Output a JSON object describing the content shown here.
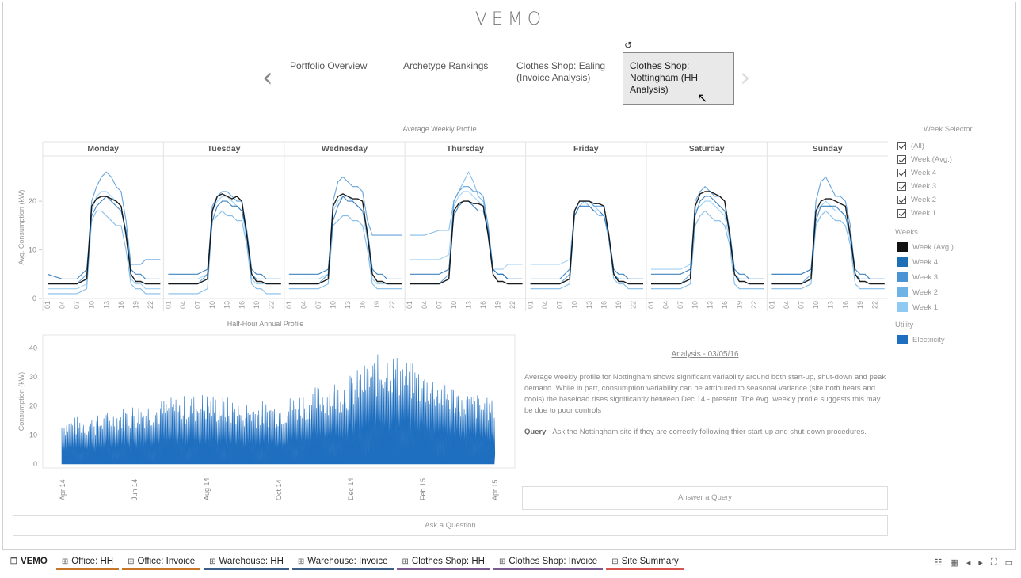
{
  "app": {
    "title": "VEMO"
  },
  "nav": {
    "buttons": [
      {
        "label": "Portfolio Overview"
      },
      {
        "label": "Archetype Rankings"
      },
      {
        "label": "Clothes Shop: Ealing (Invoice Analysis)"
      },
      {
        "label": "Clothes Shop: Nottingham (HH Analysis)"
      }
    ]
  },
  "weekly": {
    "title": "Average Weekly Profile",
    "ylabel": "Avg. Consumption (kW)",
    "days": [
      "Monday",
      "Tuesday",
      "Wednesday",
      "Thursday",
      "Friday",
      "Saturday",
      "Sunday"
    ]
  },
  "annual": {
    "title": "Half-Hour Annual Profile",
    "ylabel": "Consumption (kW)"
  },
  "legend": {
    "week_selector_title": "Week Selector",
    "week_selector": [
      "(All)",
      "Week (Avg.)",
      "Week 4",
      "Week 3",
      "Week 2",
      "Week 1"
    ],
    "weeks_title": "Weeks",
    "weeks": [
      {
        "label": "Week (Avg.)",
        "color": "#111111"
      },
      {
        "label": "Week 4",
        "color": "#1f6fb5"
      },
      {
        "label": "Week 3",
        "color": "#4a93d4"
      },
      {
        "label": "Week 2",
        "color": "#6fb2e6"
      },
      {
        "label": "Week 1",
        "color": "#8fcaf2"
      }
    ],
    "utility_title": "Utility",
    "utility": [
      {
        "label": "Electricity",
        "color": "#1f6fc0"
      }
    ]
  },
  "analysis": {
    "title": "Analysis - 03/05/16",
    "body": "Average weekly profile for Nottingham shows significant variability around both start-up, shut-down and peak demand. While in part, consumption variability can be attributed to seasonal variance (site both heats and cools) the baseload rises significantly between Dec 14 - present. The Avg. weekly profile suggests this may be due to poor controls",
    "query_label": "Query",
    "query_text": " - Ask the Nottingham site if they are correctly following thier start-up and shut-down procedures."
  },
  "buttons": {
    "answer_query": "Answer a Query",
    "ask_question": "Ask a Question"
  },
  "tabs": [
    {
      "label": "VEMO",
      "kind": "vemo"
    },
    {
      "label": "Office: HH",
      "kind": "office"
    },
    {
      "label": "Office: Invoice",
      "kind": "office"
    },
    {
      "label": "Warehouse: HH",
      "kind": "warehouse"
    },
    {
      "label": "Warehouse: Invoice",
      "kind": "warehouse"
    },
    {
      "label": "Clothes Shop: HH",
      "kind": "clothes"
    },
    {
      "label": "Clothes Shop: Invoice",
      "kind": "clothes"
    },
    {
      "label": "Site Summary",
      "kind": "summary"
    }
  ],
  "chart_data": [
    {
      "type": "line",
      "title": "Average Weekly Profile",
      "ylabel": "Avg. Consumption (kW)",
      "facets": [
        "Monday",
        "Tuesday",
        "Wednesday",
        "Thursday",
        "Friday",
        "Saturday",
        "Sunday"
      ],
      "x_ticks": [
        "01",
        "04",
        "07",
        "10",
        "13",
        "16",
        "19",
        "22"
      ],
      "x": [
        0,
        3,
        6,
        8,
        9,
        10,
        11,
        12,
        13,
        14,
        15,
        16,
        17,
        18,
        19,
        20,
        21,
        23
      ],
      "y_ticks": [
        0,
        10,
        20
      ],
      "ylim": [
        0,
        28
      ],
      "series": [
        {
          "name": "Week (Avg.)",
          "color": "#111111",
          "values": [
            [
              3,
              3,
              3,
              4,
              19,
              20.5,
              21,
              21,
              20.5,
              20,
              19,
              13,
              5,
              3.5,
              3.5,
              3,
              3,
              3
            ],
            [
              3,
              3,
              3,
              4,
              18,
              21,
              21.5,
              21,
              20.5,
              21,
              20,
              13,
              5,
              3.5,
              3.5,
              3,
              3,
              3
            ],
            [
              3,
              3,
              3,
              4,
              19,
              21,
              21.5,
              21,
              20.5,
              20.5,
              20,
              13,
              5,
              3.5,
              3.5,
              3,
              3,
              3
            ],
            [
              3,
              3,
              3,
              4,
              18,
              19.5,
              20,
              20,
              19.5,
              19.5,
              19,
              13,
              5,
              3.5,
              3.5,
              3,
              3,
              3
            ],
            [
              3,
              3,
              3,
              4,
              18,
              20,
              20,
              20,
              19.5,
              19.5,
              19,
              13,
              5,
              3.5,
              3.5,
              3,
              3,
              3
            ],
            [
              3,
              3,
              3,
              4,
              19,
              21.5,
              22,
              22,
              21.5,
              21,
              20,
              13,
              5,
              3.5,
              3.5,
              3,
              3,
              3
            ],
            [
              3,
              3,
              3,
              4,
              18,
              20,
              20.5,
              20.5,
              20,
              19.5,
              19,
              13,
              5,
              3.5,
              3.5,
              3,
              3,
              3
            ]
          ]
        },
        {
          "name": "Week 4",
          "color": "#1f6fb5",
          "values": [
            [
              5,
              4,
              4,
              6,
              17,
              19,
              20,
              21,
              20,
              19,
              18,
              14,
              6,
              5,
              5,
              4,
              4,
              4
            ],
            [
              5,
              5,
              5,
              6,
              16,
              19,
              20,
              20,
              19,
              19,
              18,
              14,
              6,
              5,
              5,
              4,
              4,
              4
            ],
            [
              5,
              5,
              5,
              6,
              16,
              19,
              21,
              20,
              20,
              19,
              18,
              14,
              6,
              5,
              5,
              4,
              4,
              4
            ],
            [
              5,
              5,
              5,
              6,
              17,
              19,
              20,
              20,
              19,
              18,
              18,
              14,
              6,
              5,
              5,
              4,
              4,
              4
            ],
            [
              4,
              4,
              4,
              6,
              17,
              19,
              19,
              19,
              18,
              18,
              17,
              13,
              6,
              5,
              5,
              4,
              4,
              4
            ],
            [
              5,
              5,
              5,
              6,
              17,
              20,
              21,
              21,
              20,
              19,
              18,
              14,
              6,
              5,
              5,
              4,
              4,
              4
            ],
            [
              5,
              5,
              5,
              6,
              16,
              19,
              19,
              19,
              19,
              18,
              17,
              13,
              6,
              5,
              5,
              4,
              4,
              4
            ]
          ]
        },
        {
          "name": "Week 3",
          "color": "#4a93d4",
          "values": [
            [
              3,
              3,
              3,
              5,
              20,
              23,
              25,
              26,
              25,
              23,
              22,
              16,
              7,
              7,
              7,
              8,
              8,
              8
            ],
            [
              3,
              3,
              3,
              5,
              19,
              21,
              22,
              22,
              21,
              20,
              20,
              14,
              5,
              4,
              4,
              4,
              4,
              4
            ],
            [
              3,
              3,
              3,
              5,
              20,
              24,
              25,
              24,
              23,
              23,
              22,
              16,
              13,
              13,
              13,
              13,
              13,
              13
            ],
            [
              3,
              3,
              3,
              5,
              20,
              22,
              23,
              23,
              22,
              22,
              21,
              15,
              6,
              5,
              5,
              4,
              4,
              4
            ],
            [
              3,
              3,
              3,
              5,
              18,
              20,
              20,
              20,
              19,
              19,
              19,
              13,
              5,
              4,
              4,
              4,
              4,
              4
            ],
            [
              3,
              3,
              3,
              5,
              20,
              22,
              23,
              22,
              21,
              21,
              20,
              14,
              5,
              4,
              4,
              4,
              4,
              4
            ],
            [
              3,
              3,
              3,
              5,
              20,
              24,
              25,
              23,
              21,
              21,
              20,
              15,
              5,
              4,
              4,
              4,
              4,
              4
            ]
          ]
        },
        {
          "name": "Week 2",
          "color": "#6fb2e6",
          "values": [
            [
              1,
              1,
              1,
              2,
              16,
              18,
              18,
              17,
              16,
              15,
              15,
              10,
              3,
              2,
              2,
              1,
              1,
              1
            ],
            [
              1,
              1,
              1,
              2,
              16,
              17,
              18,
              17,
              17,
              16,
              16,
              11,
              3,
              2,
              2,
              1,
              1,
              1
            ],
            [
              2,
              2,
              2,
              3,
              15,
              16,
              17,
              17,
              16,
              16,
              15,
              10,
              3,
              2,
              2,
              2,
              2,
              2
            ],
            [
              13,
              13,
              14,
              14,
              20,
              22,
              24,
              26,
              24,
              21,
              20,
              14,
              6,
              5,
              5,
              4,
              4,
              4
            ],
            [
              2,
              2,
              2,
              3,
              17,
              19,
              20,
              19,
              18,
              17,
              17,
              12,
              4,
              3,
              3,
              2,
              2,
              2
            ],
            [
              2,
              2,
              2,
              3,
              15,
              17,
              18,
              17,
              16,
              16,
              15,
              11,
              3,
              2,
              2,
              2,
              2,
              2
            ],
            [
              2,
              2,
              2,
              3,
              15,
              17,
              18,
              17,
              16,
              16,
              15,
              11,
              3,
              2,
              2,
              2,
              2,
              2
            ]
          ]
        },
        {
          "name": "Week 1",
          "color": "#8fcaf2",
          "values": [
            [
              2,
              2,
              2,
              3,
              18,
              21,
              22,
              22,
              21,
              20,
              19,
              13,
              4,
              3,
              3,
              2,
              2,
              2
            ],
            [
              4,
              4,
              4,
              5,
              18,
              20,
              21,
              21,
              20,
              19,
              18,
              12,
              4,
              3,
              3,
              3,
              3,
              3
            ],
            [
              4,
              4,
              4,
              5,
              18,
              20,
              21,
              21,
              20,
              19,
              18,
              12,
              4,
              3,
              3,
              3,
              3,
              3
            ],
            [
              8,
              8,
              8,
              9,
              19,
              21,
              22,
              22,
              21,
              20,
              19,
              13,
              6,
              6,
              6,
              7,
              7,
              7
            ],
            [
              7,
              7,
              7,
              8,
              18,
              20,
              20,
              20,
              19,
              18,
              17,
              12,
              5,
              4,
              4,
              4,
              4,
              4
            ],
            [
              6,
              6,
              6,
              7,
              18,
              19,
              20,
              20,
              19,
              18,
              17,
              12,
              5,
              4,
              4,
              4,
              4,
              4
            ],
            [
              5,
              5,
              5,
              6,
              18,
              19,
              20,
              19,
              18,
              18,
              17,
              12,
              5,
              4,
              4,
              4,
              4,
              4
            ]
          ]
        }
      ]
    },
    {
      "type": "area",
      "title": "Half-Hour Annual Profile",
      "ylabel": "Consumption (kW)",
      "x_ticks": [
        "Apr 14",
        "Jun 14",
        "Aug 14",
        "Oct 14",
        "Dec 14",
        "Feb 15",
        "Apr 15"
      ],
      "y_ticks": [
        0,
        10,
        20,
        30,
        40
      ],
      "ylim": [
        0,
        42
      ],
      "color": "#1f6fc0",
      "x": [
        "Apr 14",
        "May 14",
        "Jun 14",
        "Jul 14",
        "Aug 14",
        "Sep 14",
        "Oct 14",
        "Nov 14",
        "Dec 14",
        "Jan 15",
        "Feb 15",
        "Mar 15",
        "Apr 15"
      ],
      "peak_values": [
        16,
        17,
        21,
        23,
        25,
        22,
        22,
        27,
        31,
        40,
        33,
        27,
        22
      ],
      "base_values": [
        1,
        1,
        1,
        1,
        1,
        1,
        1,
        2,
        3,
        5,
        4,
        3,
        3
      ]
    }
  ]
}
